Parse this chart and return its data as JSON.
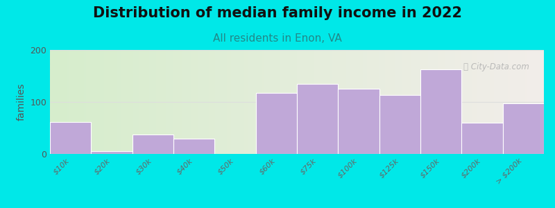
{
  "title": "Distribution of median family income in 2022",
  "subtitle": "All residents in Enon, VA",
  "ylabel": "families",
  "background_outer": "#00e8e8",
  "background_inner_left": "#d6edcc",
  "background_inner_right": "#f2eeea",
  "bar_color": "#c0a8d8",
  "bar_edgecolor": "#ffffff",
  "bin_edges": [
    0,
    1,
    2,
    3,
    4,
    5,
    6,
    7,
    8,
    9,
    10,
    11,
    12
  ],
  "values": [
    62,
    5,
    38,
    30,
    0,
    117,
    135,
    125,
    113,
    163,
    60,
    98
  ],
  "xlabels": [
    "$10k",
    "$20k",
    "$30k",
    "$40k",
    "$50k",
    "$60k",
    "$75k",
    "$100k",
    "$125k",
    "$150k",
    "$200k",
    "> $200k"
  ],
  "ylim": [
    0,
    200
  ],
  "yticks": [
    0,
    100,
    200
  ],
  "watermark": "Ⓢ City-Data.com",
  "title_fontsize": 15,
  "subtitle_fontsize": 11,
  "ylabel_fontsize": 10
}
